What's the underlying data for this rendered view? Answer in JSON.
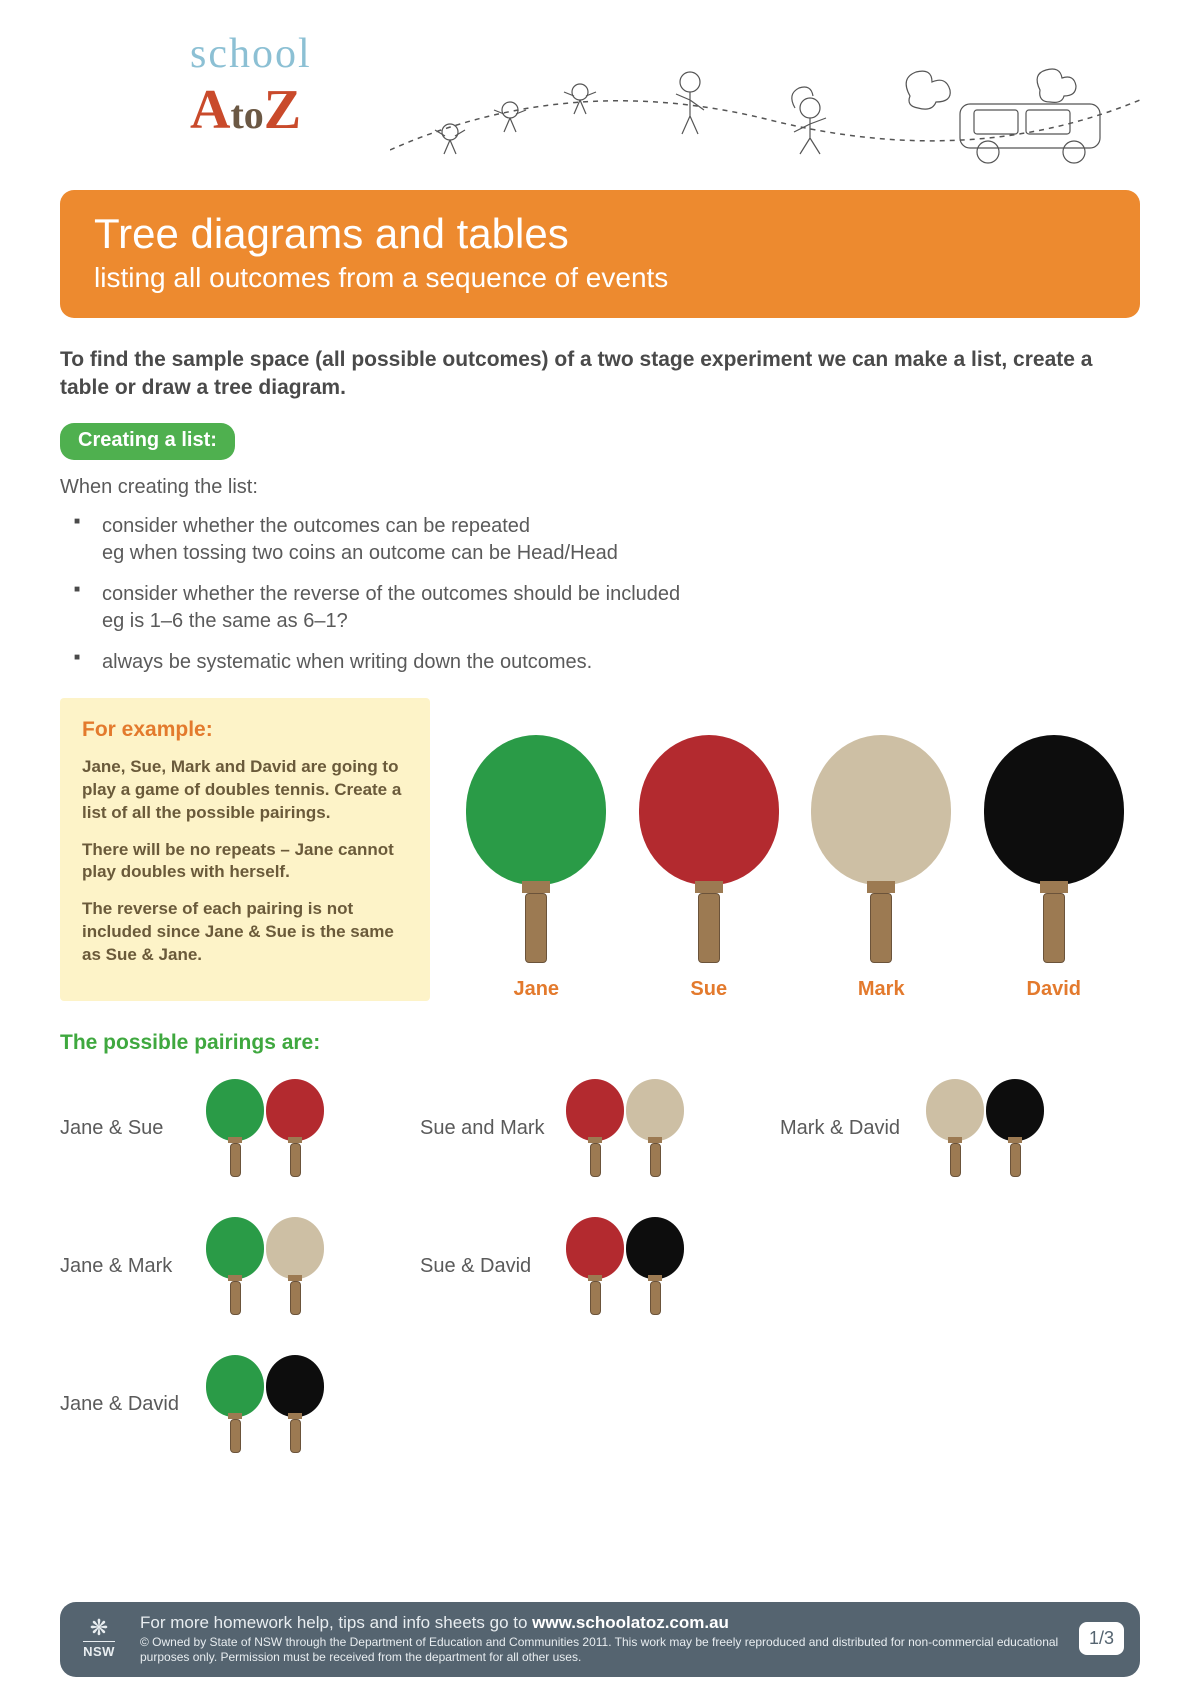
{
  "logo": {
    "line1": "school",
    "a": "A",
    "to": "to",
    "z": "Z"
  },
  "header": {
    "title": "Tree diagrams and tables",
    "subtitle": "listing all outcomes from a sequence of events",
    "bg_color": "#ed8a2f"
  },
  "intro": "To find the sample space (all possible outcomes) of a two stage experiment we can make a list, create a table or draw a tree diagram.",
  "pill": {
    "label": "Creating a list:",
    "bg_color": "#4fb04f"
  },
  "lead": "When creating the list:",
  "bullets": [
    "consider whether the outcomes can be repeated\neg when tossing two coins an outcome can be Head/Head",
    "consider whether the reverse of the outcomes should be included\neg is 1–6 the same as 6–1?",
    "always be systematic when writing down the outcomes."
  ],
  "example": {
    "title": "For example:",
    "paragraphs": [
      "Jane, Sue, Mark and David are going to play a game of doubles tennis. Create a list of all the possible pairings.",
      "There will be no repeats – Jane cannot play doubles with herself.",
      "The reverse of each pairing is not included since Jane & Sue is the same as Sue & Jane."
    ],
    "box_bg": "#fdf3c8",
    "title_color": "#e37a2d"
  },
  "players": [
    {
      "name": "Jane",
      "color": "#2a9b47"
    },
    {
      "name": "Sue",
      "color": "#b32a2f"
    },
    {
      "name": "Mark",
      "color": "#cdbfa4"
    },
    {
      "name": "David",
      "color": "#0d0d0d"
    }
  ],
  "name_color": "#e37a2d",
  "large_paddle": {
    "blade_w": 140,
    "blade_h": 150,
    "neck_w": 28,
    "neck_h": 12,
    "handle_w": 22,
    "handle_h": 70
  },
  "small_paddle": {
    "blade_w": 58,
    "blade_h": 62,
    "neck_w": 14,
    "neck_h": 6,
    "handle_w": 11,
    "handle_h": 34
  },
  "pairings_title": "The possible pairings are:",
  "pairings_title_color": "#3fa83f",
  "pairings": [
    {
      "label": "Jane & Sue",
      "colors": [
        "#2a9b47",
        "#b32a2f"
      ]
    },
    {
      "label": "Sue and Mark",
      "colors": [
        "#b32a2f",
        "#cdbfa4"
      ]
    },
    {
      "label": "Mark & David",
      "colors": [
        "#cdbfa4",
        "#0d0d0d"
      ]
    },
    {
      "label": "Jane & Mark",
      "colors": [
        "#2a9b47",
        "#cdbfa4"
      ]
    },
    {
      "label": "Sue & David",
      "colors": [
        "#b32a2f",
        "#0d0d0d"
      ]
    },
    null,
    {
      "label": "Jane & David",
      "colors": [
        "#2a9b47",
        "#0d0d0d"
      ]
    }
  ],
  "footer": {
    "bg_color": "#556470",
    "main_pre": "For more homework help, tips and info sheets go to ",
    "main_bold": "www.schoolatoz.com.au",
    "copyright": "© Owned by State of NSW through the Department of Education and Communities 2011. This work may be freely reproduced and distributed for non-commercial educational purposes only. Permission must be received from the department for all other uses.",
    "nsw": "NSW",
    "page": "1/3"
  }
}
